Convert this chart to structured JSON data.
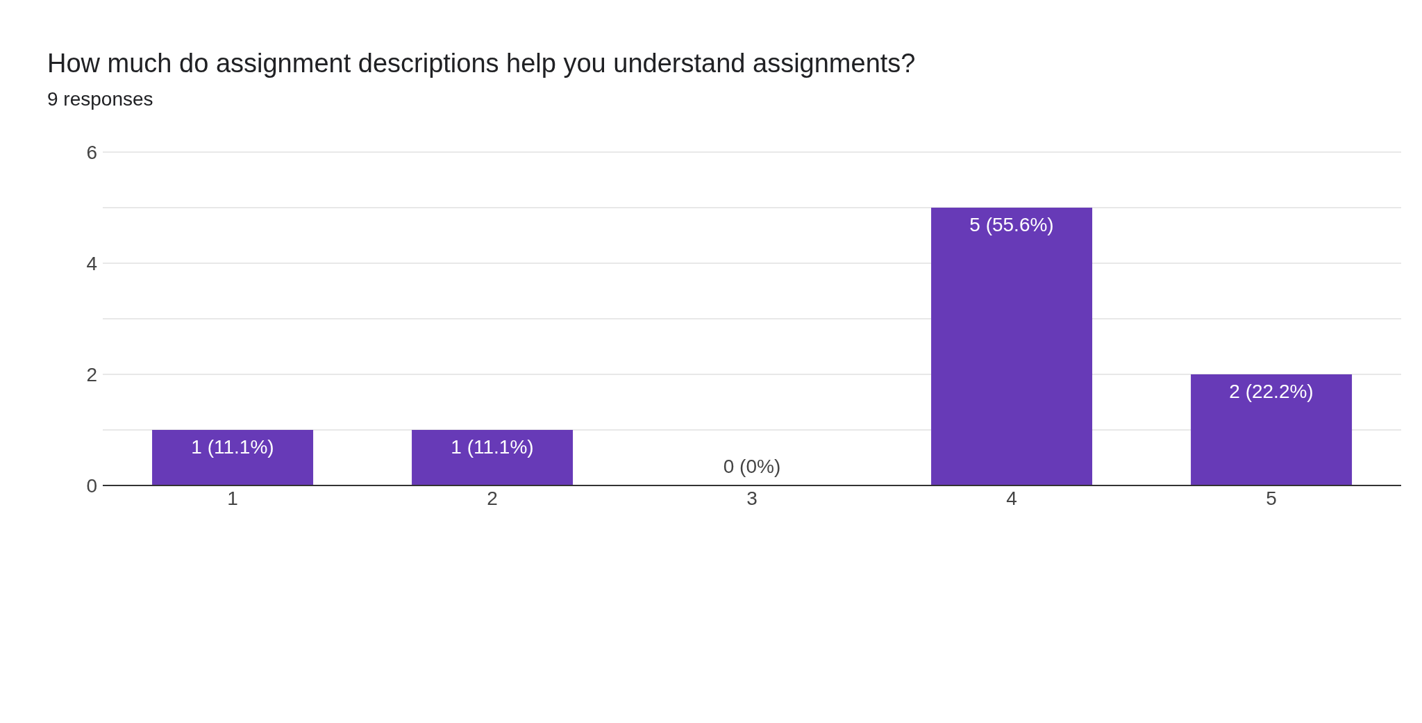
{
  "chart_data": {
    "type": "bar",
    "title": "How much do assignment descriptions help you understand assignments?",
    "subtitle": "9 responses",
    "categories": [
      "1",
      "2",
      "3",
      "4",
      "5"
    ],
    "values": [
      1,
      1,
      0,
      5,
      2
    ],
    "value_labels": [
      "1 (11.1%)",
      "1 (11.1%)",
      "0 (0%)",
      "5 (55.6%)",
      "2 (22.2%)"
    ],
    "color": "#673ab7",
    "ylim": [
      0,
      6
    ],
    "yticks": [
      0,
      {
        "value": 1,
        "label": null
      },
      2,
      {
        "value": 3,
        "label": null
      },
      4,
      {
        "value": 5,
        "label": null
      },
      6
    ],
    "grid": "y"
  }
}
